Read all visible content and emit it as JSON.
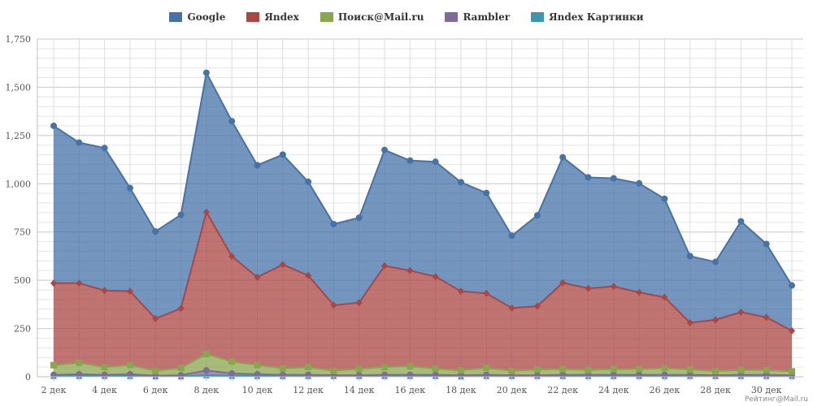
{
  "legend": {
    "google": "Google",
    "yandex": "Яndex",
    "mail": "Поиск@Mail.ru",
    "rambler": "Rambler",
    "yandex_images": "Яndex Картинки"
  },
  "watermark": "Рейтинг@Mail.ru",
  "chart_data": {
    "type": "area",
    "stacked": true,
    "x": [
      "2 дек",
      "3 дек",
      "4 дек",
      "5 дек",
      "6 дек",
      "7 дек",
      "8 дек",
      "9 дек",
      "10 дек",
      "11 дек",
      "12 дек",
      "13 дек",
      "14 дек",
      "15 дек",
      "16 дек",
      "17 дек",
      "18 дек",
      "19 дек",
      "20 дек",
      "21 дек",
      "22 дек",
      "23 дек",
      "24 дек",
      "25 дек",
      "26 дек",
      "27 дек",
      "28 дек",
      "29 дек",
      "30 дек",
      "31 дек"
    ],
    "x_tick_labels": [
      "2 дек",
      "4 дек",
      "6 дек",
      "8 дек",
      "10 дек",
      "12 дек",
      "14 дек",
      "16 дек",
      "18 дек",
      "20 дек",
      "22 дек",
      "24 дек",
      "26 дек",
      "28 дек",
      "30 дек"
    ],
    "ylim": [
      0,
      1750
    ],
    "y_ticks": [
      0,
      250,
      500,
      750,
      1000,
      1250,
      1500,
      1750
    ],
    "y_tick_labels": [
      "0",
      "250",
      "500",
      "750",
      "1,000",
      "1,250",
      "1,500",
      "1,750"
    ],
    "grid": true,
    "legend_position": "top-center",
    "series": [
      {
        "name": "Яndex Картинки",
        "color": "#3d96ae",
        "marker": "triangle",
        "values": [
          5,
          5,
          5,
          5,
          3,
          3,
          8,
          5,
          5,
          5,
          5,
          5,
          5,
          5,
          5,
          5,
          3,
          5,
          5,
          5,
          5,
          5,
          5,
          5,
          5,
          5,
          5,
          5,
          5,
          5
        ]
      },
      {
        "name": "Rambler",
        "color": "#80699b",
        "marker": "circle",
        "values": [
          5,
          8,
          5,
          8,
          3,
          5,
          25,
          12,
          8,
          5,
          5,
          3,
          3,
          5,
          5,
          5,
          5,
          5,
          3,
          3,
          5,
          5,
          5,
          5,
          5,
          5,
          3,
          5,
          5,
          3
        ]
      },
      {
        "name": "Поиск@Mail.ru",
        "color": "#89a54e",
        "marker": "square",
        "values": [
          50,
          60,
          40,
          48,
          25,
          38,
          85,
          62,
          48,
          33,
          40,
          23,
          33,
          40,
          45,
          32,
          25,
          37,
          23,
          30,
          30,
          25,
          30,
          30,
          35,
          28,
          22,
          25,
          25,
          20
        ]
      },
      {
        "name": "Яndex",
        "color": "#aa4643",
        "marker": "diamond",
        "values": [
          425,
          412,
          397,
          382,
          270,
          308,
          735,
          545,
          455,
          538,
          475,
          340,
          343,
          525,
          495,
          477,
          410,
          385,
          325,
          328,
          447,
          423,
          428,
          397,
          367,
          242,
          265,
          300,
          273,
          210
        ]
      },
      {
        "name": "Google",
        "color": "#4572a7",
        "marker": "circle",
        "values": [
          815,
          728,
          738,
          535,
          452,
          485,
          722,
          700,
          580,
          570,
          485,
          420,
          440,
          600,
          570,
          595,
          565,
          520,
          375,
          470,
          650,
          575,
          560,
          565,
          510,
          345,
          300,
          470,
          380,
          235
        ]
      }
    ]
  }
}
